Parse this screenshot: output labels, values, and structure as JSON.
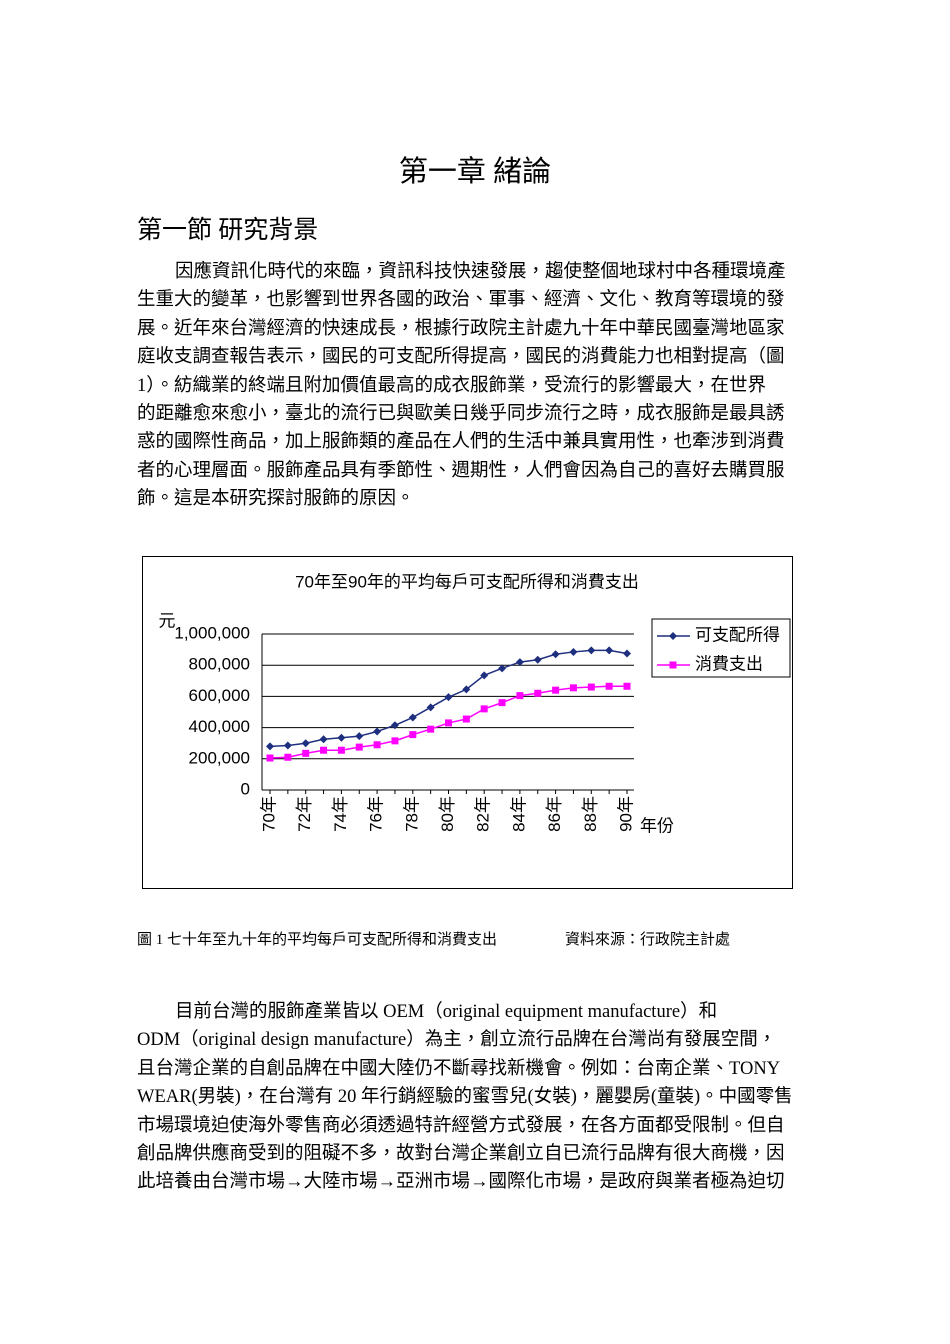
{
  "document": {
    "chapter_title": "第一章 緒論",
    "section_title": "第一節 研究背景",
    "paragraphs": [
      [
        "因應資訊化時代的來臨，資訊科技快速發展，趨使整個地球村中各種環境產",
        "生重大的變革，也影響到世界各國的政治、軍事、經濟、文化、教育等環境的發",
        "展。近年來台灣經濟的快速成長，根據行政院主計處九十年中華民國臺灣地區家",
        "庭收支調查報告表示，國民的可支配所得提高，國民的消費能力也相對提高（圖",
        "1）。紡織業的終端且附加價值最高的成衣服飾業，受流行的影響最大，在世界",
        "的距離愈來愈小，臺北的流行已與歐美日幾乎同步流行之時，成衣服飾是最具誘",
        "惑的國際性商品，加上服飾類的產品在人們的生活中兼具實用性，也牽涉到消費",
        "者的心理層面。服飾產品具有季節性、週期性，人們會因為自己的喜好去購買服",
        "飾。這是本研究探討服飾的原因。"
      ],
      [
        "目前台灣的服飾產業皆以 OEM（original equipment manufacture）和",
        "ODM（original design manufacture）為主，創立流行品牌在台灣尚有發展空間，",
        "且台灣企業的自創品牌在中國大陸仍不斷尋找新機會。例如：台南企業、TONY",
        "WEAR(男裝)，在台灣有 20 年行銷經驗的蜜雪兒(女裝)，麗嬰房(童裝)。中國零售",
        "市場環境迫使海外零售商必須透過特許經營方式發展，在各方面都受限制。但自",
        "創品牌供應商受到的阻礙不多，故對台灣企業創立自已流行品牌有很大商機，因",
        "此培養由台灣市場→大陸市場→亞洲市場→國際化市場，是政府與業者極為迫切"
      ]
    ],
    "figure_caption": "圖 1 七十年至九十年的平均每戶可支配所得和消費支出",
    "figure_source": "資料來源：行政院主計處"
  },
  "chart_data": {
    "type": "line",
    "title": "70年至90年的平均每戶可支配所得和消費支出",
    "y_label": "元",
    "x_label": "年份",
    "categories": [
      "70年",
      null,
      "72年",
      null,
      "74年",
      null,
      "76年",
      null,
      "78年",
      null,
      "80年",
      null,
      "82年",
      null,
      "84年",
      null,
      "86年",
      null,
      "88年",
      null,
      "90年"
    ],
    "series": [
      {
        "name": "可支配所得",
        "color": "#1f2f7f",
        "marker": "diamond",
        "values": [
          280000,
          285000,
          300000,
          325000,
          335000,
          345000,
          375000,
          415000,
          465000,
          530000,
          595000,
          645000,
          735000,
          780000,
          820000,
          835000,
          870000,
          885000,
          895000,
          895000,
          875000
        ]
      },
      {
        "name": "消費支出",
        "color": "#ff00ff",
        "marker": "square",
        "values": [
          205000,
          210000,
          235000,
          255000,
          255000,
          275000,
          290000,
          315000,
          355000,
          390000,
          430000,
          455000,
          520000,
          560000,
          605000,
          620000,
          640000,
          655000,
          660000,
          665000,
          665000
        ]
      }
    ],
    "ylim": [
      0,
      1000000
    ],
    "yticks": [
      0,
      {
        "value": 200000,
        "label": "200,000"
      },
      {
        "value": 400000,
        "label": "400,000"
      },
      {
        "value": 600000,
        "label": "600,000"
      },
      {
        "value": 800000,
        "label": "800,000"
      },
      {
        "value": 1000000,
        "label": "1,000,000"
      }
    ],
    "grid": true,
    "legend": "right"
  }
}
